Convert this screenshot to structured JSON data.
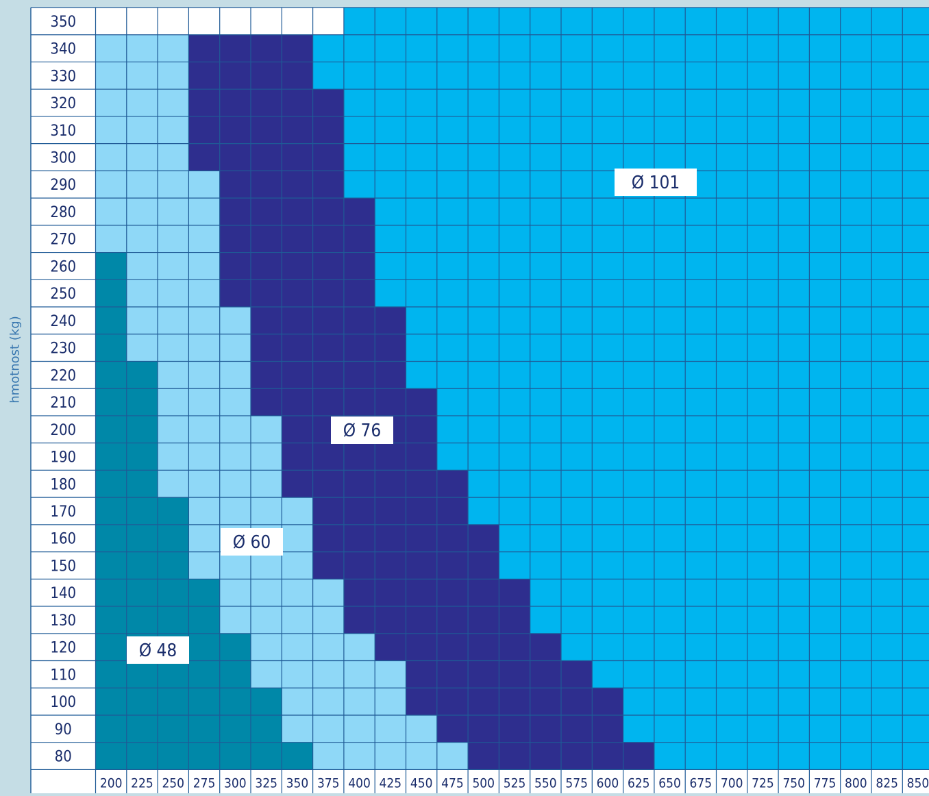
{
  "chart_data": {
    "type": "heatmap",
    "ylabel": "hmotnost (kg)",
    "xlabel": "",
    "x_values": [
      200,
      225,
      250,
      275,
      300,
      325,
      350,
      375,
      400,
      425,
      450,
      475,
      500,
      525,
      550,
      575,
      600,
      625,
      650,
      675,
      700,
      725,
      750,
      775,
      800,
      825,
      850
    ],
    "y_values": [
      350,
      340,
      330,
      320,
      310,
      300,
      290,
      280,
      270,
      260,
      250,
      240,
      230,
      220,
      210,
      200,
      190,
      180,
      170,
      160,
      150,
      140,
      130,
      120,
      110,
      100,
      90,
      80
    ],
    "categories": [
      {
        "id": "none",
        "label": "",
        "color": "#ffffff"
      },
      {
        "id": "d48",
        "label": "Ø 48",
        "color": "#0088a8"
      },
      {
        "id": "d60",
        "label": "Ø 60",
        "color": "#8fd8f7"
      },
      {
        "id": "d76",
        "label": "Ø 76",
        "color": "#2e2e8e"
      },
      {
        "id": "d101",
        "label": "Ø 101",
        "color": "#00b5ef"
      }
    ],
    "region_boundaries": {
      "note_order": "for each row (by y value), count of columns per category starting at x=200",
      "rows": [
        {
          "y": 350,
          "counts": {
            "none": 8,
            "d48": 0,
            "d60": 0,
            "d76": 0,
            "d101": 19
          }
        },
        {
          "y": 340,
          "counts": {
            "none": 0,
            "d48": 0,
            "d60": 3,
            "d76": 4,
            "d101": 20
          }
        },
        {
          "y": 330,
          "counts": {
            "none": 0,
            "d48": 0,
            "d60": 3,
            "d76": 4,
            "d101": 20
          }
        },
        {
          "y": 320,
          "counts": {
            "none": 0,
            "d48": 0,
            "d60": 3,
            "d76": 5,
            "d101": 19
          }
        },
        {
          "y": 310,
          "counts": {
            "none": 0,
            "d48": 0,
            "d60": 3,
            "d76": 5,
            "d101": 19
          }
        },
        {
          "y": 300,
          "counts": {
            "none": 0,
            "d48": 0,
            "d60": 3,
            "d76": 5,
            "d101": 19
          }
        },
        {
          "y": 290,
          "counts": {
            "none": 0,
            "d48": 0,
            "d60": 4,
            "d76": 4,
            "d101": 19
          }
        },
        {
          "y": 280,
          "counts": {
            "none": 0,
            "d48": 0,
            "d60": 4,
            "d76": 5,
            "d101": 18
          }
        },
        {
          "y": 270,
          "counts": {
            "none": 0,
            "d48": 0,
            "d60": 4,
            "d76": 5,
            "d101": 18
          }
        },
        {
          "y": 260,
          "counts": {
            "none": 0,
            "d48": 1,
            "d60": 3,
            "d76": 5,
            "d101": 18
          }
        },
        {
          "y": 250,
          "counts": {
            "none": 0,
            "d48": 1,
            "d60": 3,
            "d76": 5,
            "d101": 18
          }
        },
        {
          "y": 240,
          "counts": {
            "none": 0,
            "d48": 1,
            "d60": 4,
            "d76": 5,
            "d101": 17
          }
        },
        {
          "y": 230,
          "counts": {
            "none": 0,
            "d48": 1,
            "d60": 4,
            "d76": 5,
            "d101": 17
          }
        },
        {
          "y": 220,
          "counts": {
            "none": 0,
            "d48": 2,
            "d60": 3,
            "d76": 5,
            "d101": 17
          }
        },
        {
          "y": 210,
          "counts": {
            "none": 0,
            "d48": 2,
            "d60": 3,
            "d76": 6,
            "d101": 16
          }
        },
        {
          "y": 200,
          "counts": {
            "none": 0,
            "d48": 2,
            "d60": 4,
            "d76": 5,
            "d101": 16
          }
        },
        {
          "y": 190,
          "counts": {
            "none": 0,
            "d48": 2,
            "d60": 4,
            "d76": 5,
            "d101": 16
          }
        },
        {
          "y": 180,
          "counts": {
            "none": 0,
            "d48": 2,
            "d60": 4,
            "d76": 6,
            "d101": 15
          }
        },
        {
          "y": 170,
          "counts": {
            "none": 0,
            "d48": 3,
            "d60": 4,
            "d76": 5,
            "d101": 15
          }
        },
        {
          "y": 160,
          "counts": {
            "none": 0,
            "d48": 3,
            "d60": 4,
            "d76": 6,
            "d101": 14
          }
        },
        {
          "y": 150,
          "counts": {
            "none": 0,
            "d48": 3,
            "d60": 4,
            "d76": 6,
            "d101": 14
          }
        },
        {
          "y": 140,
          "counts": {
            "none": 0,
            "d48": 4,
            "d60": 4,
            "d76": 6,
            "d101": 13
          }
        },
        {
          "y": 130,
          "counts": {
            "none": 0,
            "d48": 4,
            "d60": 4,
            "d76": 6,
            "d101": 13
          }
        },
        {
          "y": 120,
          "counts": {
            "none": 0,
            "d48": 5,
            "d60": 4,
            "d76": 6,
            "d101": 12
          }
        },
        {
          "y": 110,
          "counts": {
            "none": 0,
            "d48": 5,
            "d60": 5,
            "d76": 6,
            "d101": 11
          }
        },
        {
          "y": 100,
          "counts": {
            "none": 0,
            "d48": 6,
            "d60": 4,
            "d76": 7,
            "d101": 10
          }
        },
        {
          "y": 90,
          "counts": {
            "none": 0,
            "d48": 6,
            "d60": 5,
            "d76": 6,
            "d101": 10
          }
        },
        {
          "y": 80,
          "counts": {
            "none": 0,
            "d48": 7,
            "d60": 5,
            "d76": 6,
            "d101": 9
          }
        }
      ]
    },
    "annotations": [
      {
        "text": "Ø 101",
        "category": "d101"
      },
      {
        "text": "Ø 76",
        "category": "d76"
      },
      {
        "text": "Ø 60",
        "category": "d60"
      },
      {
        "text": "Ø 48",
        "category": "d48"
      }
    ],
    "grid": true,
    "gridline_color": "#1f5a96"
  }
}
